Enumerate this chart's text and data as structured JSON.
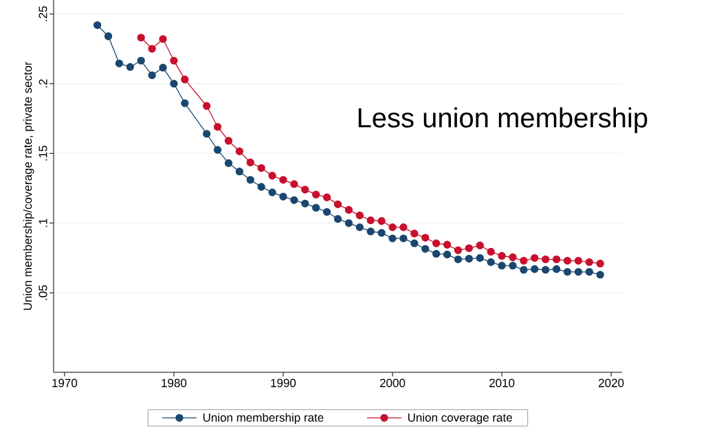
{
  "chart_data": {
    "type": "line",
    "ylabel": "Union membership/coverage rate, private sector",
    "annotations": [
      "Less union membership"
    ],
    "xlim": [
      1969,
      2021
    ],
    "xticks": [
      1970,
      1980,
      1990,
      2000,
      2010,
      2020
    ],
    "ylim": [
      -0.007,
      0.26
    ],
    "yticks": [
      {
        "value": 0.05,
        "label": ".05"
      },
      {
        "value": 0.1,
        "label": ".1"
      },
      {
        "value": 0.15,
        "label": ".15"
      },
      {
        "value": 0.2,
        "label": ".2"
      },
      {
        "value": 0.25,
        "label": ".25"
      }
    ],
    "grid": "y",
    "legend": "bottom",
    "marker": "circle",
    "line_style": "solid",
    "series": [
      {
        "name": "Union membership rate",
        "color": "#1a476f",
        "x": [
          1973,
          1974,
          1975,
          1976,
          1977,
          1978,
          1979,
          1980,
          1981,
          1983,
          1984,
          1985,
          1986,
          1987,
          1988,
          1989,
          1990,
          1991,
          1992,
          1993,
          1994,
          1995,
          1996,
          1997,
          1998,
          1999,
          2000,
          2001,
          2002,
          2003,
          2004,
          2005,
          2006,
          2007,
          2008,
          2009,
          2010,
          2011,
          2012,
          2013,
          2014,
          2015,
          2016,
          2017,
          2018,
          2019
        ],
        "values": [
          0.242,
          0.234,
          0.2145,
          0.212,
          0.2165,
          0.206,
          0.2115,
          0.2,
          0.186,
          0.164,
          0.1525,
          0.143,
          0.137,
          0.131,
          0.126,
          0.122,
          0.119,
          0.1165,
          0.114,
          0.111,
          0.108,
          0.103,
          0.1,
          0.097,
          0.094,
          0.093,
          0.089,
          0.089,
          0.0855,
          0.0815,
          0.078,
          0.0775,
          0.074,
          0.0745,
          0.075,
          0.072,
          0.0695,
          0.0695,
          0.0665,
          0.067,
          0.0665,
          0.067,
          0.065,
          0.065,
          0.065,
          0.063
        ]
      },
      {
        "name": "Union coverage rate",
        "color": "#c8102e",
        "x": [
          1977,
          1978,
          1979,
          1980,
          1981,
          1983,
          1984,
          1985,
          1986,
          1987,
          1988,
          1989,
          1990,
          1991,
          1992,
          1993,
          1994,
          1995,
          1996,
          1997,
          1998,
          1999,
          2000,
          2001,
          2002,
          2003,
          2004,
          2005,
          2006,
          2007,
          2008,
          2009,
          2010,
          2011,
          2012,
          2013,
          2014,
          2015,
          2016,
          2017,
          2018,
          2019
        ],
        "values": [
          0.233,
          0.225,
          0.232,
          0.2165,
          0.203,
          0.184,
          0.169,
          0.159,
          0.1515,
          0.1435,
          0.1395,
          0.134,
          0.131,
          0.128,
          0.124,
          0.1205,
          0.1185,
          0.1135,
          0.1095,
          0.1055,
          0.102,
          0.1015,
          0.097,
          0.097,
          0.0925,
          0.0895,
          0.0855,
          0.0845,
          0.0805,
          0.082,
          0.084,
          0.0795,
          0.0765,
          0.0755,
          0.073,
          0.075,
          0.074,
          0.074,
          0.073,
          0.073,
          0.072,
          0.071
        ]
      }
    ]
  }
}
